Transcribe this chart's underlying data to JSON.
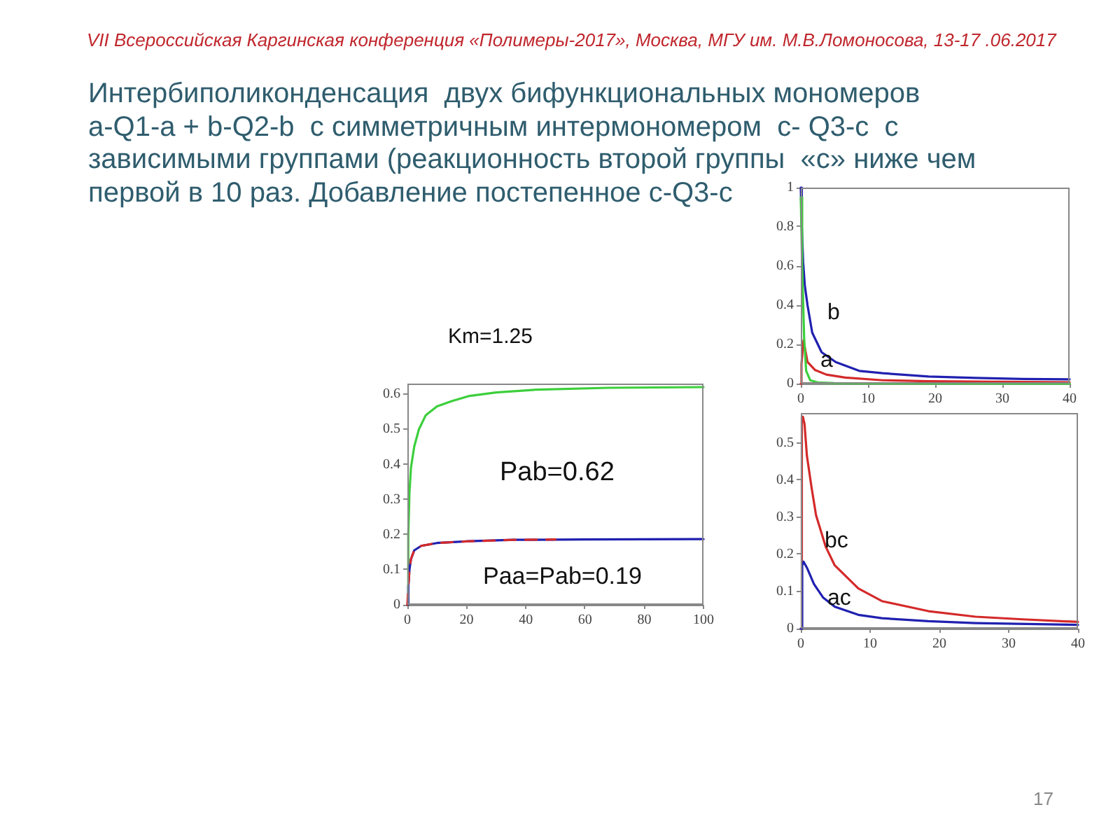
{
  "chart_data": [
    {
      "type": "line",
      "title": "Km=1.25",
      "annotations": [
        "VII Всероссийская Каргинская конференция «Полимеры-2017», Москва, МГУ им. М.В.Ломоносова, 13-17 .06.2017",
        "Интербиполиконденсация  двух бифункциональных мономеров\na-Q1-a + b-Q2-b  с симметричным интермономером  c- Q3-c  с\nзависимыми группами (реакционность второй группы  «c» ниже чем\nпервой в 10 раз. Добавление постепенное c-Q3-c",
        "Pab=0.62",
        "Paa=Pab=0.19",
        "17"
      ],
      "xlim": [
        0,
        100
      ],
      "xticks": [
        0,
        20,
        40,
        60,
        80,
        100
      ],
      "ylim": [
        0,
        0.63
      ],
      "yticks": [
        0,
        0.1,
        0.2,
        0.3,
        0.4,
        0.5,
        0.6
      ],
      "series": [
        {
          "color": "#3ccf3c",
          "x": [
            0,
            0.3,
            0.7,
            1.2,
            2.3,
            3.9,
            6.2,
            10,
            15,
            21,
            30,
            44,
            68,
            100
          ],
          "values": [
            0,
            0.2,
            0.32,
            0.39,
            0.45,
            0.5,
            0.54,
            0.565,
            0.58,
            0.595,
            0.605,
            0.613,
            0.618,
            0.62
          ]
        },
        {
          "color": "#2020b0",
          "x": [
            0,
            0.3,
            0.7,
            1.2,
            2.3,
            4.7,
            10,
            21,
            36,
            60,
            100
          ],
          "values": [
            0,
            0.05,
            0.1,
            0.13,
            0.155,
            0.168,
            0.176,
            0.181,
            0.185,
            0.186,
            0.187
          ]
        },
        {
          "color": "#d42a2a",
          "line_style": "dashed",
          "x": [
            0,
            0.3,
            0.7,
            1.2,
            2.3,
            4.7,
            10,
            21,
            36,
            50
          ],
          "values": [
            0,
            0.05,
            0.1,
            0.13,
            0.155,
            0.168,
            0.176,
            0.181,
            0.185,
            0.186
          ]
        }
      ]
    },
    {
      "type": "line",
      "xlim": [
        0,
        40
      ],
      "xticks": [
        0,
        10,
        20,
        30,
        40
      ],
      "ylim": [
        0,
        1
      ],
      "yticks": [
        0,
        0.2,
        0.4,
        0.6,
        0.8,
        1
      ],
      "series": [
        {
          "name": "b",
          "color": "#2020b0",
          "x": [
            0,
            0.15,
            0.35,
            0.6,
            1.0,
            1.7,
            3.1,
            5.2,
            8.7,
            12.2,
            19,
            26,
            33,
            40
          ],
          "values": [
            1,
            0.8,
            0.62,
            0.5,
            0.4,
            0.26,
            0.16,
            0.11,
            0.065,
            0.053,
            0.036,
            0.029,
            0.024,
            0.022
          ]
        },
        {
          "name": "a",
          "color": "#d42a2a",
          "x": [
            0,
            0.1,
            0.4,
            1.0,
            2.1,
            3.8,
            6.6,
            12.2,
            19,
            26,
            40
          ],
          "values": [
            0,
            0.1,
            0.22,
            0.11,
            0.07,
            0.046,
            0.031,
            0.017,
            0.012,
            0.01,
            0.007
          ]
        },
        {
          "color": "#3ccf3c",
          "x": [
            0,
            0.2,
            0.5,
            0.8,
            1.4,
            2.5,
            5,
            40
          ],
          "values": [
            0.95,
            0.6,
            0.23,
            0.065,
            0.017,
            0.006,
            0.002,
            0
          ]
        }
      ]
    },
    {
      "type": "line",
      "xlim": [
        0,
        40
      ],
      "xticks": [
        0,
        10,
        20,
        30,
        40
      ],
      "ylim": [
        0,
        0.58
      ],
      "yticks": [
        0,
        0.1,
        0.2,
        0.3,
        0.4,
        0.5
      ],
      "series": [
        {
          "name": "bc",
          "color": "#d42a2a",
          "x": [
            0,
            0.15,
            0.3,
            0.54,
            0.88,
            1.55,
            2.2,
            3.6,
            4.9,
            8.3,
            11.7,
            18.4,
            25.2,
            32,
            40
          ],
          "values": [
            0,
            0.57,
            0.57,
            0.55,
            0.465,
            0.38,
            0.305,
            0.22,
            0.17,
            0.108,
            0.074,
            0.047,
            0.032,
            0.025,
            0.018
          ]
        },
        {
          "name": "ac",
          "color": "#2020b0",
          "x": [
            0,
            0.2,
            0.4,
            0.88,
            1.9,
            3.2,
            4.9,
            8.3,
            11.7,
            18.4,
            25.2,
            40
          ],
          "values": [
            0,
            0.17,
            0.18,
            0.164,
            0.12,
            0.084,
            0.059,
            0.037,
            0.028,
            0.02,
            0.015,
            0.01
          ]
        }
      ]
    }
  ]
}
